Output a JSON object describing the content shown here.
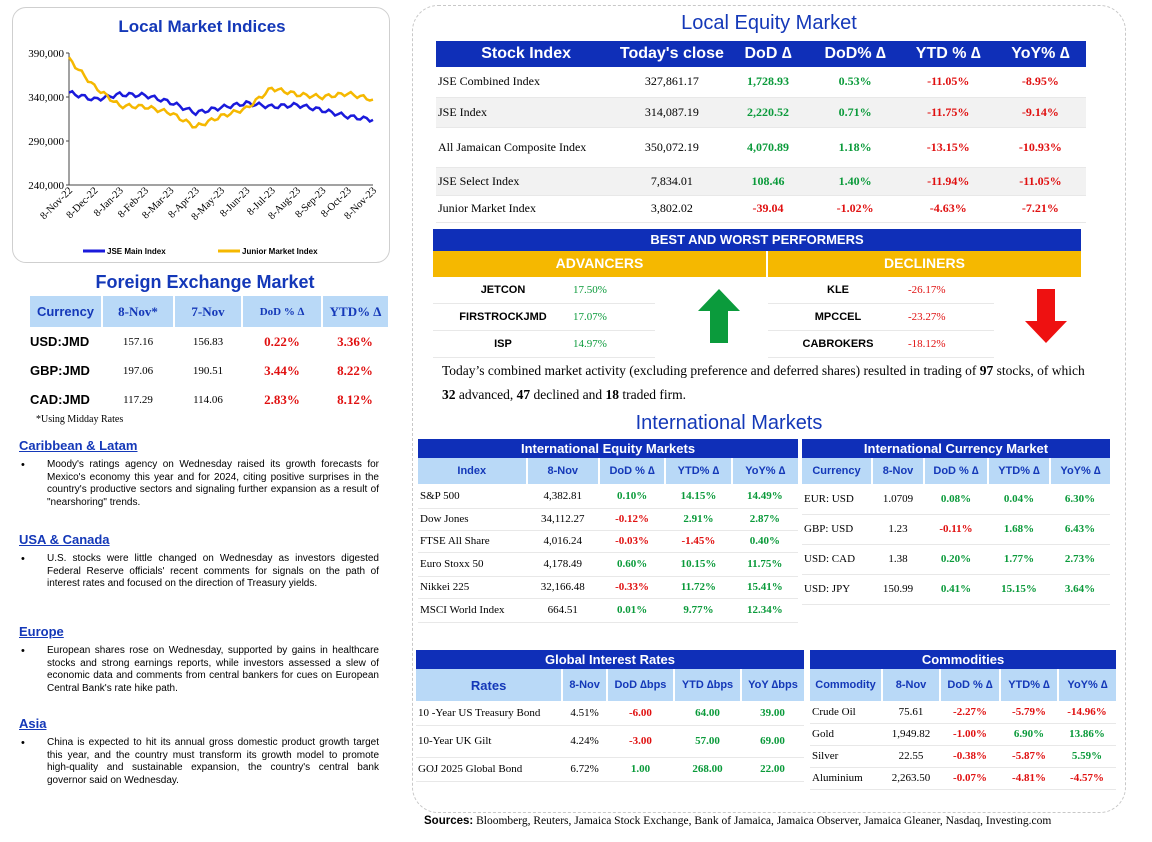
{
  "local_indices": {
    "title": "Local Market Indices",
    "chart_data": {
      "type": "line",
      "title": "Local Market Indices",
      "x": [
        "8-Nov-22",
        "8-Dec-22",
        "8-Jan-23",
        "8-Feb-23",
        "8-Mar-23",
        "8-Apr-23",
        "8-May-23",
        "8-Jun-23",
        "8-Jul-23",
        "8-Aug-23",
        "8-Sep-23",
        "8-Oct-23",
        "8-Nov-23"
      ],
      "yticks": [
        "390,000",
        "340,000",
        "290,000",
        "240,000"
      ],
      "ylim": [
        240000,
        390000
      ],
      "grid": false,
      "legend": "bottom",
      "series": [
        {
          "name": "JSE Main Index",
          "color": "#1a1adb",
          "values": [
            345000,
            337000,
            343000,
            342000,
            334000,
            322000,
            328000,
            333000,
            329000,
            331000,
            325000,
            318000,
            314000
          ]
        },
        {
          "name": "Junior Market Index",
          "color": "#f5b800",
          "values": [
            383000,
            352000,
            330000,
            329000,
            322000,
            306000,
            318000,
            327000,
            350000,
            343000,
            340000,
            344000,
            337000
          ]
        }
      ]
    }
  },
  "fx": {
    "title": "Foreign Exchange Market",
    "headers": [
      "Currency",
      "8-Nov*",
      "7-Nov",
      "DoD % ∆",
      "YTD% ∆"
    ],
    "rows": [
      {
        "c": "USD:JMD",
        "a": "157.16",
        "b": "156.83",
        "d": "0.22%",
        "y": "3.36%"
      },
      {
        "c": "GBP:JMD",
        "a": "197.06",
        "b": "190.51",
        "d": "3.44%",
        "y": "8.22%"
      },
      {
        "c": "CAD:JMD",
        "a": "117.29",
        "b": "114.06",
        "d": "2.83%",
        "y": "8.12%"
      }
    ],
    "note": "*Using Midday Rates"
  },
  "news": [
    {
      "title": "Caribbean & Latam",
      "text": "Moody's ratings agency on Wednesday raised its growth forecasts for Mexico's economy this year and for 2024, citing positive surprises in the country's productive sectors and signaling further expansion as a result of \"nearshoring\" trends."
    },
    {
      "title": "USA & Canada",
      "text": "U.S. stocks were little changed on Wednesday as investors digested Federal Reserve officials' recent comments for signals on the path of interest rates and focused on the direction of Treasury yields."
    },
    {
      "title": "Europe",
      "text": "European shares rose on Wednesday, supported by gains in healthcare stocks and strong earnings reports, while investors assessed a slew of economic data and comments from central bankers for cues on European Central Bank's rate hike path."
    },
    {
      "title": "Asia",
      "text": "China is expected to hit its annual gross domestic product growth target this year, and the country must transform its growth model to promote high-quality and sustainable expansion, the country's central bank governor said on Wednesday."
    }
  ],
  "equity": {
    "title": "Local Equity Market",
    "headers": [
      "Stock Index",
      "Today's close",
      "DoD  ∆",
      "DoD% ∆",
      "YTD % ∆",
      "YoY% ∆"
    ],
    "rows": [
      {
        "n": "JSE Combined Index",
        "c": "327,861.17",
        "d": "1,728.93",
        "dp": "0.53%",
        "y": "-11.05%",
        "yy": "-8.95%",
        "s": "g"
      },
      {
        "n": "JSE Index",
        "c": "314,087.19",
        "d": "2,220.52",
        "dp": "0.71%",
        "y": "-11.75%",
        "yy": "-9.14%",
        "s": "g"
      },
      {
        "n": "All Jamaican Composite Index",
        "c": "350,072.19",
        "d": "4,070.89",
        "dp": "1.18%",
        "y": "-13.15%",
        "yy": "-10.93%",
        "s": "g"
      },
      {
        "n": "JSE Select Index",
        "c": "7,834.01",
        "d": "108.46",
        "dp": "1.40%",
        "y": "-11.94%",
        "yy": "-11.05%",
        "s": "g"
      },
      {
        "n": "Junior Market Index",
        "c": "3,802.02",
        "d": "-39.04",
        "dp": "-1.02%",
        "y": "-4.63%",
        "yy": "-7.21%",
        "s": "r"
      }
    ]
  },
  "performers": {
    "title": "BEST AND WORST PERFORMERS",
    "adv_label": "ADVANCERS",
    "dec_label": "DECLINERS",
    "advancers": [
      {
        "n": "JETCON",
        "v": "17.50%"
      },
      {
        "n": "FIRSTROCKJMD",
        "v": "17.07%"
      },
      {
        "n": "ISP",
        "v": "14.97%"
      }
    ],
    "decliners": [
      {
        "n": "KLE",
        "v": "-26.17%"
      },
      {
        "n": "MPCCEL",
        "v": "-23.27%"
      },
      {
        "n": "CABROKERS",
        "v": "-18.12%"
      }
    ],
    "up_icon": "green-up-arrow",
    "down_icon": "red-down-arrow"
  },
  "summary": {
    "pre": "Today’s combined market activity (excluding preference and deferred shares) resulted in trading of ",
    "total": "97",
    "mid1": " stocks, of which ",
    "adv": "32",
    "mid2": " advanced, ",
    "dec": "47",
    "mid3": " declined and ",
    "firm": "18",
    "post": " traded firm."
  },
  "intl": {
    "title": "International Markets",
    "equity": {
      "title": "International Equity Markets",
      "headers": [
        "Index",
        "8-Nov",
        "DoD % ∆",
        "YTD% ∆",
        "YoY% ∆"
      ],
      "rows": [
        {
          "n": "S&P 500",
          "v": "4,382.81",
          "d": "0.10%",
          "y": "14.15%",
          "yy": "14.49%",
          "ds": "g"
        },
        {
          "n": "Dow Jones",
          "v": "34,112.27",
          "d": "-0.12%",
          "y": "2.91%",
          "yy": "2.87%",
          "ds": "r"
        },
        {
          "n": "FTSE All Share",
          "v": "4,016.24",
          "d": "-0.03%",
          "y": "-1.45%",
          "yy": "0.40%",
          "ds": "r",
          "ys": "r"
        },
        {
          "n": "Euro Stoxx 50",
          "v": "4,178.49",
          "d": "0.60%",
          "y": "10.15%",
          "yy": "11.75%",
          "ds": "g"
        },
        {
          "n": "Nikkei 225",
          "v": "32,166.48",
          "d": "-0.33%",
          "y": "11.72%",
          "yy": "15.41%",
          "ds": "r"
        },
        {
          "n": "MSCI World Index",
          "v": "664.51",
          "d": "0.01%",
          "y": "9.77%",
          "yy": "12.34%",
          "ds": "g"
        }
      ]
    },
    "currency": {
      "title": "International Currency Market",
      "headers": [
        "Currency",
        "8-Nov",
        "DoD % ∆",
        "YTD% ∆",
        "YoY% ∆"
      ],
      "rows": [
        {
          "n": "EUR: USD",
          "v": "1.0709",
          "d": "0.08%",
          "y": "0.04%",
          "yy": "6.30%",
          "ds": "g"
        },
        {
          "n": "GBP: USD",
          "v": "1.23",
          "d": "-0.11%",
          "y": "1.68%",
          "yy": "6.43%",
          "ds": "r"
        },
        {
          "n": "USD: CAD",
          "v": "1.38",
          "d": "0.20%",
          "y": "1.77%",
          "yy": "2.73%",
          "ds": "g"
        },
        {
          "n": "USD: JPY",
          "v": "150.99",
          "d": "0.41%",
          "y": "15.15%",
          "yy": "3.64%",
          "ds": "g"
        }
      ]
    },
    "rates": {
      "title": "Global Interest Rates",
      "headers": [
        "Rates",
        "8-Nov",
        "DoD ∆bps",
        "YTD ∆bps",
        "YoY ∆bps"
      ],
      "rows": [
        {
          "n": "10 -Year US Treasury Bond",
          "v": "4.51%",
          "d": "-6.00",
          "y": "64.00",
          "yy": "39.00",
          "ds": "r"
        },
        {
          "n": "10-Year UK Gilt",
          "v": "4.24%",
          "d": "-3.00",
          "y": "57.00",
          "yy": "69.00",
          "ds": "r"
        },
        {
          "n": "GOJ 2025 Global Bond",
          "v": "6.72%",
          "d": "1.00",
          "y": "268.00",
          "yy": "22.00",
          "ds": "g"
        }
      ]
    },
    "commodities": {
      "title": "Commodities",
      "headers": [
        "Commodity",
        "8-Nov",
        "DoD % ∆",
        "YTD% ∆",
        "YoY% ∆"
      ],
      "rows": [
        {
          "n": "Crude Oil",
          "v": "75.61",
          "d": "-2.27%",
          "y": "-5.79%",
          "yy": "-14.96%",
          "ds": "r",
          "ys": "r",
          "yys": "r"
        },
        {
          "n": "Gold",
          "v": "1,949.82",
          "d": "-1.00%",
          "y": "6.90%",
          "yy": "13.86%",
          "ds": "r",
          "ys": "g",
          "yys": "g"
        },
        {
          "n": "Silver",
          "v": "22.55",
          "d": "-0.38%",
          "y": "-5.87%",
          "yy": "5.59%",
          "ds": "r",
          "ys": "r",
          "yys": "g"
        },
        {
          "n": "Aluminium",
          "v": "2,263.50",
          "d": "-0.07%",
          "y": "-4.81%",
          "yy": "-4.57%",
          "ds": "r",
          "ys": "r",
          "yys": "r"
        }
      ]
    }
  },
  "sources": {
    "label": "Sources:",
    "text": " Bloomberg, Reuters, Jamaica Stock Exchange, Bank of Jamaica, Jamaica Observer, Jamaica Gleaner, Nasdaq, Investing.com"
  }
}
